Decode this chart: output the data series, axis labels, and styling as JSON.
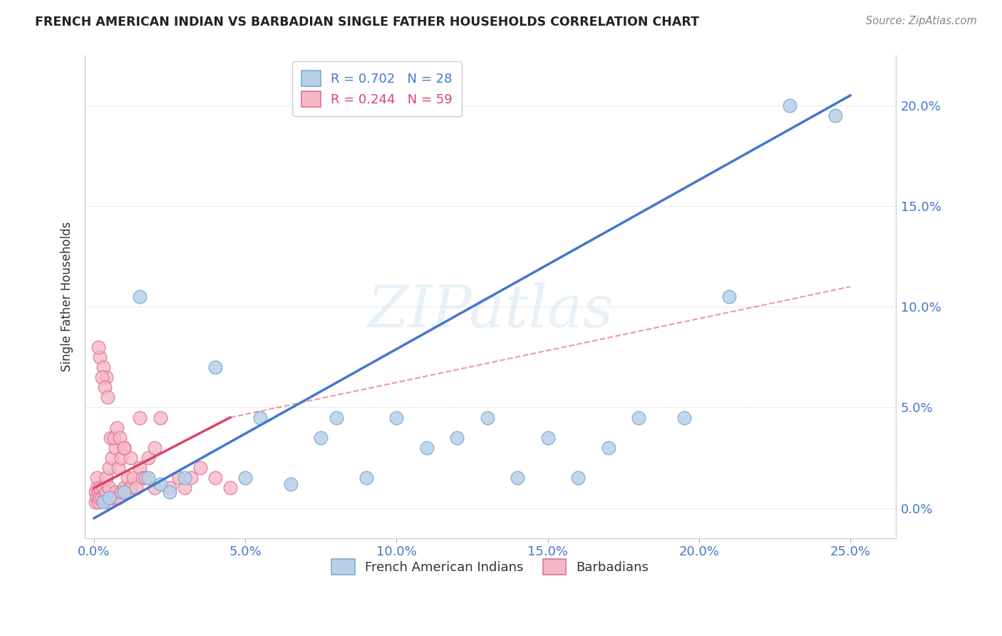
{
  "title": "FRENCH AMERICAN INDIAN VS BARBADIAN SINGLE FATHER HOUSEHOLDS CORRELATION CHART",
  "source": "Source: ZipAtlas.com",
  "xlabel_ticks": [
    0.0,
    5.0,
    10.0,
    15.0,
    20.0,
    25.0
  ],
  "ylabel_ticks": [
    0.0,
    5.0,
    10.0,
    15.0,
    20.0
  ],
  "xlim": [
    -0.3,
    26.5
  ],
  "ylim": [
    -1.5,
    22.5
  ],
  "blue_R": 0.702,
  "blue_N": 28,
  "pink_R": 0.244,
  "pink_N": 59,
  "blue_color": "#b8d0e8",
  "blue_edge": "#7aaad0",
  "pink_color": "#f5b8c8",
  "pink_edge": "#e07090",
  "blue_line_color": "#4477cc",
  "pink_line_color": "#dd4466",
  "watermark": "ZIPatlas",
  "blue_x": [
    0.3,
    0.5,
    1.0,
    1.5,
    1.8,
    2.2,
    2.5,
    3.0,
    4.0,
    5.0,
    5.5,
    6.5,
    7.5,
    8.0,
    9.0,
    10.0,
    11.0,
    12.0,
    13.0,
    14.0,
    15.0,
    16.0,
    17.0,
    18.0,
    19.5,
    21.0,
    23.0,
    24.5
  ],
  "blue_y": [
    0.3,
    0.5,
    0.8,
    10.5,
    1.5,
    1.2,
    0.8,
    1.5,
    7.0,
    1.5,
    4.5,
    1.2,
    3.5,
    4.5,
    1.5,
    4.5,
    3.0,
    3.5,
    4.5,
    1.5,
    3.5,
    1.5,
    3.0,
    4.5,
    4.5,
    10.5,
    20.0,
    19.5
  ],
  "pink_x": [
    0.05,
    0.05,
    0.1,
    0.1,
    0.1,
    0.15,
    0.15,
    0.2,
    0.2,
    0.2,
    0.25,
    0.3,
    0.3,
    0.35,
    0.4,
    0.4,
    0.4,
    0.5,
    0.5,
    0.5,
    0.6,
    0.6,
    0.7,
    0.7,
    0.8,
    0.8,
    0.9,
    0.9,
    1.0,
    1.0,
    1.1,
    1.2,
    1.2,
    1.3,
    1.4,
    1.5,
    1.5,
    1.6,
    1.7,
    1.8,
    2.0,
    2.0,
    2.2,
    2.5,
    2.8,
    3.0,
    3.2,
    3.5,
    4.0,
    4.5,
    0.15,
    0.25,
    0.35,
    0.45,
    0.55,
    0.65,
    0.75,
    0.85,
    1.0
  ],
  "pink_y": [
    0.3,
    0.8,
    0.5,
    1.0,
    1.5,
    0.3,
    0.8,
    0.5,
    1.0,
    7.5,
    0.5,
    1.0,
    7.0,
    0.5,
    0.8,
    1.5,
    6.5,
    0.3,
    1.0,
    2.0,
    0.5,
    2.5,
    0.8,
    3.0,
    0.5,
    2.0,
    0.8,
    2.5,
    1.0,
    3.0,
    1.5,
    1.0,
    2.5,
    1.5,
    1.0,
    2.0,
    4.5,
    1.5,
    1.5,
    2.5,
    1.0,
    3.0,
    4.5,
    1.0,
    1.5,
    1.0,
    1.5,
    2.0,
    1.5,
    1.0,
    8.0,
    6.5,
    6.0,
    5.5,
    3.5,
    3.5,
    4.0,
    3.5,
    3.0
  ],
  "blue_line_x_start": 0.0,
  "blue_line_x_end": 25.0,
  "blue_line_y_start": -0.5,
  "blue_line_y_end": 20.5,
  "pink_solid_x_start": 0.0,
  "pink_solid_x_end": 4.5,
  "pink_solid_y_start": 1.0,
  "pink_solid_y_end": 4.5,
  "pink_dash_x_start": 4.5,
  "pink_dash_x_end": 25.0,
  "pink_dash_y_start": 4.5,
  "pink_dash_y_end": 11.0
}
